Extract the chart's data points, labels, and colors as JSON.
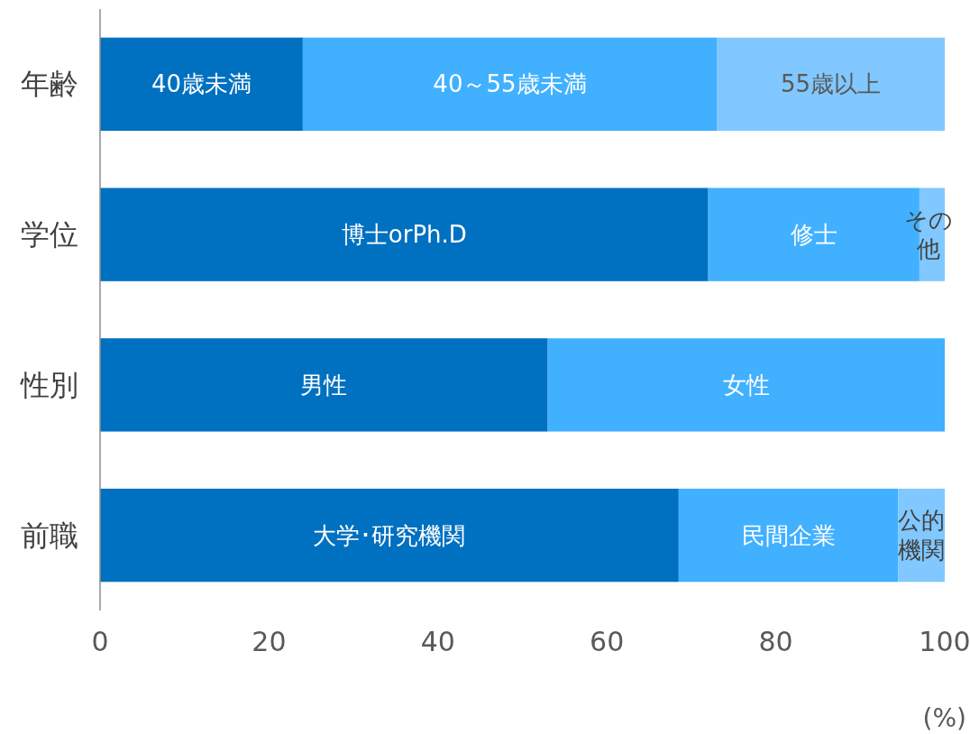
{
  "chart_data": {
    "type": "bar",
    "orientation": "horizontal",
    "stacked": true,
    "categories": [
      "年齢",
      "学位",
      "性別",
      "前職"
    ],
    "series": [
      {
        "color": "#0070c0",
        "values": [
          24,
          72,
          53,
          68.5
        ]
      },
      {
        "color": "#41b0ff",
        "values": [
          49,
          25,
          47,
          26
        ]
      },
      {
        "color": "#80c8ff",
        "values": [
          27,
          3,
          null,
          5.5
        ]
      }
    ],
    "xlim": [
      0,
      100
    ],
    "xticks": [
      0,
      20,
      40,
      60,
      80,
      100
    ],
    "grid": false,
    "annotations": [
      "40歳未満",
      "40～55歳未満",
      "55歳以上",
      "博士orPh.D",
      "修士",
      "その他",
      "男性",
      "女性",
      "大学･研究機関",
      "民間企業",
      "公的機関",
      "(%)"
    ]
  }
}
